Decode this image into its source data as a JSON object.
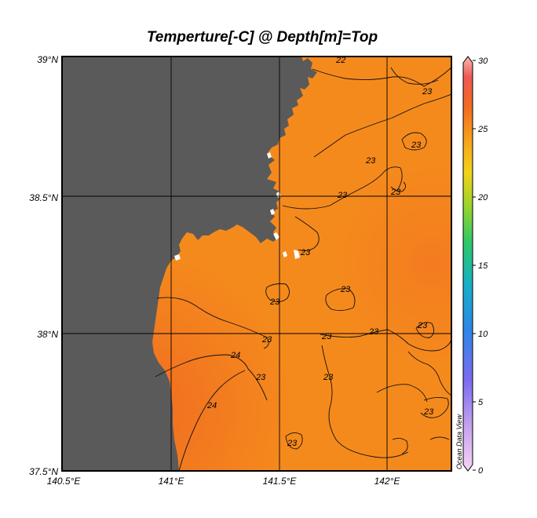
{
  "title": "Temperture[-C] @ Depth[m]=Top",
  "watermark": "Ocean Data View",
  "lat_labels": [
    "39°N",
    "38.5°N",
    "38°N",
    "37.5°N"
  ],
  "lon_labels": [
    "140.5°E",
    "141°E",
    "141.5°E",
    "142°E"
  ],
  "colorbar": {
    "ticks": [
      "30",
      "25",
      "20",
      "15",
      "10",
      "5",
      "0"
    ],
    "min": 0,
    "max": 30
  },
  "contour_labels": [
    "22",
    "23",
    "23",
    "23",
    "23",
    "23",
    "23",
    "23",
    "23",
    "23",
    "23",
    "23",
    "23",
    "24",
    "24",
    "23",
    "23",
    "23",
    "23"
  ],
  "colors": {
    "land": "#5a5a5a",
    "sea_base": "#f58a1c",
    "sea_warm": "#f26f22",
    "coast_white": "#ffffff"
  },
  "map_data": {
    "lon_range": [
      140.5,
      142.3
    ],
    "lat_range": [
      37.5,
      39.0
    ],
    "variable": "Temperature",
    "depth": "Top"
  }
}
